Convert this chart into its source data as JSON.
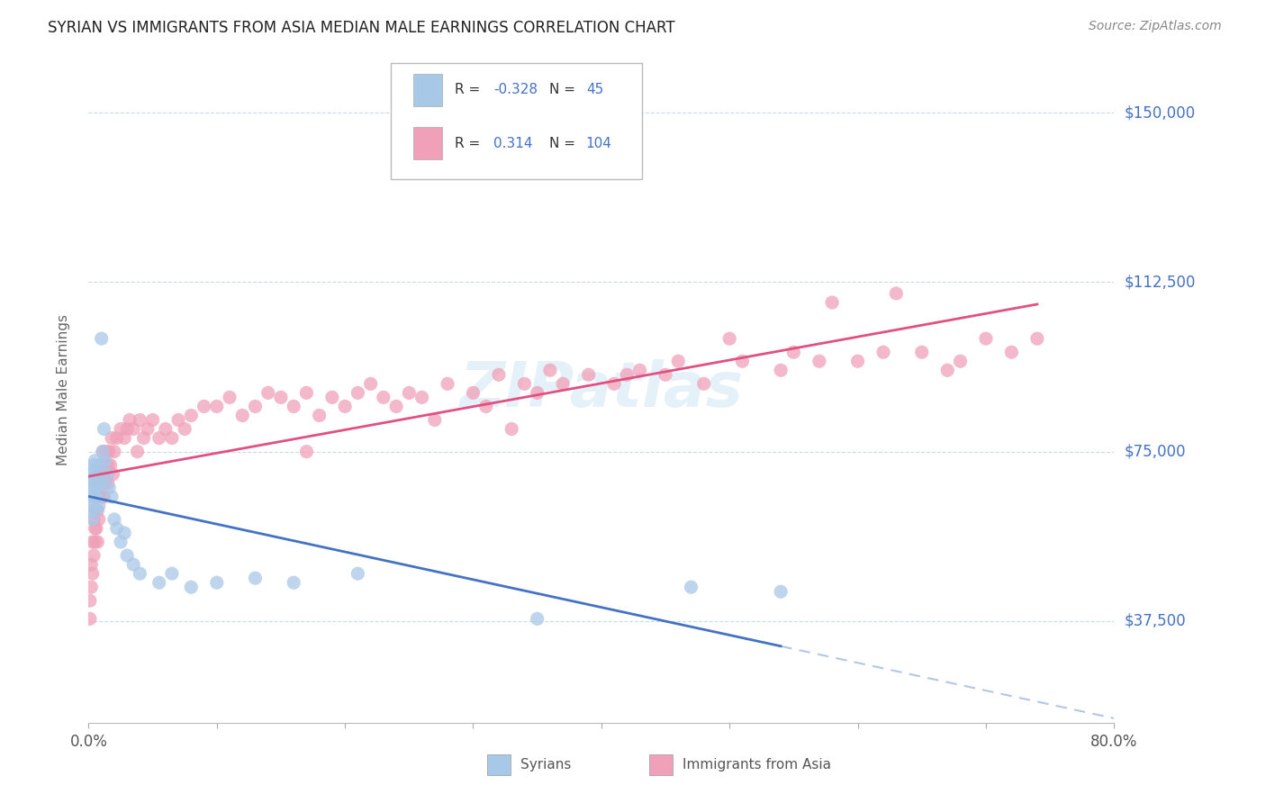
{
  "title": "SYRIAN VS IMMIGRANTS FROM ASIA MEDIAN MALE EARNINGS CORRELATION CHART",
  "source": "Source: ZipAtlas.com",
  "ylabel": "Median Male Earnings",
  "ytick_labels": [
    "$37,500",
    "$75,000",
    "$112,500",
    "$150,000"
  ],
  "ytick_values": [
    37500,
    75000,
    112500,
    150000
  ],
  "xlim": [
    0.0,
    0.8
  ],
  "ylim": [
    15000,
    162500
  ],
  "watermark": "ZIPatlas",
  "r_syrian": -0.328,
  "n_syrian": 45,
  "r_asia": 0.314,
  "n_asia": 104,
  "color_syrian": "#a8c8e8",
  "color_asia": "#f0a0b8",
  "color_line_syrian": "#4472c4",
  "color_line_asia": "#e05080",
  "background_color": "#ffffff",
  "grid_color": "#c8dce8",
  "title_color": "#222222",
  "label_color_blue": "#4472c4",
  "syrian_x": [
    0.001,
    0.001,
    0.002,
    0.002,
    0.002,
    0.003,
    0.003,
    0.003,
    0.004,
    0.004,
    0.005,
    0.005,
    0.005,
    0.006,
    0.006,
    0.007,
    0.007,
    0.008,
    0.008,
    0.009,
    0.01,
    0.01,
    0.011,
    0.012,
    0.013,
    0.015,
    0.016,
    0.018,
    0.02,
    0.022,
    0.025,
    0.028,
    0.03,
    0.035,
    0.04,
    0.055,
    0.065,
    0.08,
    0.1,
    0.13,
    0.16,
    0.21,
    0.35,
    0.47,
    0.54
  ],
  "syrian_y": [
    67000,
    62000,
    68000,
    65000,
    71000,
    70000,
    64000,
    60000,
    68000,
    72000,
    65000,
    69000,
    73000,
    67000,
    62000,
    70000,
    65000,
    68000,
    63000,
    72000,
    100000,
    68000,
    75000,
    80000,
    73000,
    70000,
    67000,
    65000,
    60000,
    58000,
    55000,
    57000,
    52000,
    50000,
    48000,
    46000,
    48000,
    45000,
    46000,
    47000,
    46000,
    48000,
    38000,
    45000,
    44000
  ],
  "asia_x": [
    0.001,
    0.001,
    0.002,
    0.002,
    0.003,
    0.003,
    0.004,
    0.004,
    0.005,
    0.005,
    0.005,
    0.006,
    0.006,
    0.007,
    0.007,
    0.007,
    0.008,
    0.008,
    0.009,
    0.009,
    0.01,
    0.01,
    0.011,
    0.011,
    0.012,
    0.012,
    0.013,
    0.013,
    0.014,
    0.015,
    0.015,
    0.016,
    0.017,
    0.018,
    0.019,
    0.02,
    0.022,
    0.025,
    0.028,
    0.03,
    0.032,
    0.035,
    0.038,
    0.04,
    0.043,
    0.046,
    0.05,
    0.055,
    0.06,
    0.065,
    0.07,
    0.075,
    0.08,
    0.09,
    0.1,
    0.11,
    0.12,
    0.13,
    0.14,
    0.15,
    0.16,
    0.17,
    0.18,
    0.19,
    0.2,
    0.21,
    0.22,
    0.23,
    0.24,
    0.25,
    0.26,
    0.28,
    0.3,
    0.32,
    0.34,
    0.35,
    0.36,
    0.37,
    0.39,
    0.41,
    0.43,
    0.45,
    0.48,
    0.51,
    0.54,
    0.57,
    0.6,
    0.62,
    0.65,
    0.68,
    0.7,
    0.72,
    0.74,
    0.63,
    0.58,
    0.5,
    0.46,
    0.42,
    0.55,
    0.67,
    0.31,
    0.17,
    0.27,
    0.33
  ],
  "asia_y": [
    42000,
    38000,
    50000,
    45000,
    55000,
    48000,
    60000,
    52000,
    58000,
    62000,
    55000,
    65000,
    58000,
    68000,
    62000,
    55000,
    70000,
    60000,
    65000,
    72000,
    68000,
    72000,
    65000,
    75000,
    70000,
    65000,
    72000,
    68000,
    75000,
    72000,
    68000,
    75000,
    72000,
    78000,
    70000,
    75000,
    78000,
    80000,
    78000,
    80000,
    82000,
    80000,
    75000,
    82000,
    78000,
    80000,
    82000,
    78000,
    80000,
    78000,
    82000,
    80000,
    83000,
    85000,
    85000,
    87000,
    83000,
    85000,
    88000,
    87000,
    85000,
    88000,
    83000,
    87000,
    85000,
    88000,
    90000,
    87000,
    85000,
    88000,
    87000,
    90000,
    88000,
    92000,
    90000,
    88000,
    93000,
    90000,
    92000,
    90000,
    93000,
    92000,
    90000,
    95000,
    93000,
    95000,
    95000,
    97000,
    97000,
    95000,
    100000,
    97000,
    100000,
    110000,
    108000,
    100000,
    95000,
    92000,
    97000,
    93000,
    85000,
    75000,
    82000,
    80000
  ]
}
